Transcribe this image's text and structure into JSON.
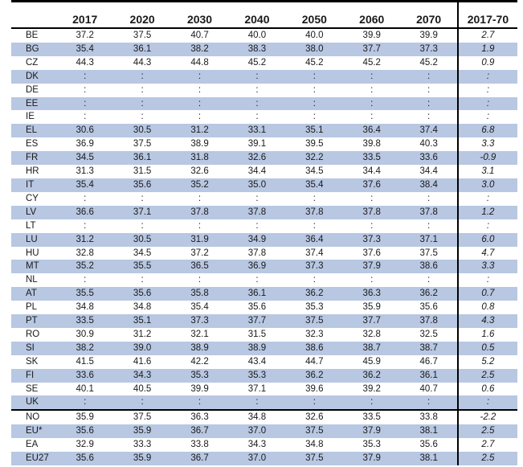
{
  "table": {
    "columns": [
      "",
      "2017",
      "2020",
      "2030",
      "2040",
      "2050",
      "2060",
      "2070",
      "2017-70"
    ],
    "rows": [
      {
        "c": "BE",
        "v": [
          "37.2",
          "37.5",
          "40.7",
          "40.0",
          "40.0",
          "39.9",
          "39.9",
          "2.7"
        ],
        "shade": false
      },
      {
        "c": "BG",
        "v": [
          "35.4",
          "36.1",
          "38.2",
          "38.3",
          "38.0",
          "37.7",
          "37.3",
          "1.9"
        ],
        "shade": true
      },
      {
        "c": "CZ",
        "v": [
          "44.3",
          "44.3",
          "44.8",
          "45.2",
          "45.2",
          "45.2",
          "45.2",
          "0.9"
        ],
        "shade": false
      },
      {
        "c": "DK",
        "v": [
          ":",
          ":",
          ":",
          ":",
          ":",
          ":",
          ":",
          ":"
        ],
        "shade": true
      },
      {
        "c": "DE",
        "v": [
          ":",
          ":",
          ":",
          ":",
          ":",
          ":",
          ":",
          ":"
        ],
        "shade": false
      },
      {
        "c": "EE",
        "v": [
          ":",
          ":",
          ":",
          ":",
          ":",
          ":",
          ":",
          ":"
        ],
        "shade": true
      },
      {
        "c": "IE",
        "v": [
          ":",
          ":",
          ":",
          ":",
          ":",
          ":",
          ":",
          ":"
        ],
        "shade": false
      },
      {
        "c": "EL",
        "v": [
          "30.6",
          "30.5",
          "31.2",
          "33.1",
          "35.1",
          "36.4",
          "37.4",
          "6.8"
        ],
        "shade": true
      },
      {
        "c": "ES",
        "v": [
          "36.9",
          "37.5",
          "38.9",
          "39.1",
          "39.5",
          "39.8",
          "40.3",
          "3.3"
        ],
        "shade": false
      },
      {
        "c": "FR",
        "v": [
          "34.5",
          "36.1",
          "31.8",
          "32.6",
          "32.2",
          "33.5",
          "33.6",
          "-0.9"
        ],
        "shade": true
      },
      {
        "c": "HR",
        "v": [
          "31.3",
          "31.5",
          "32.6",
          "34.4",
          "34.5",
          "34.4",
          "34.4",
          "3.1"
        ],
        "shade": false
      },
      {
        "c": "IT",
        "v": [
          "35.4",
          "35.6",
          "35.2",
          "35.0",
          "35.4",
          "37.6",
          "38.4",
          "3.0"
        ],
        "shade": true
      },
      {
        "c": "CY",
        "v": [
          ":",
          ":",
          ":",
          ":",
          ":",
          ":",
          ":",
          ":"
        ],
        "shade": false
      },
      {
        "c": "LV",
        "v": [
          "36.6",
          "37.1",
          "37.8",
          "37.8",
          "37.8",
          "37.8",
          "37.8",
          "1.2"
        ],
        "shade": true
      },
      {
        "c": "LT",
        "v": [
          ":",
          ":",
          ":",
          ":",
          ":",
          ":",
          ":",
          ":"
        ],
        "shade": false
      },
      {
        "c": "LU",
        "v": [
          "31.2",
          "30.5",
          "31.9",
          "34.9",
          "36.4",
          "37.3",
          "37.1",
          "6.0"
        ],
        "shade": true
      },
      {
        "c": "HU",
        "v": [
          "32.8",
          "34.5",
          "37.2",
          "37.8",
          "37.4",
          "37.6",
          "37.5",
          "4.7"
        ],
        "shade": false
      },
      {
        "c": "MT",
        "v": [
          "35.2",
          "35.5",
          "36.5",
          "36.9",
          "37.3",
          "37.9",
          "38.6",
          "3.3"
        ],
        "shade": true
      },
      {
        "c": "NL",
        "v": [
          ":",
          ":",
          ":",
          ":",
          ":",
          ":",
          ":",
          ":"
        ],
        "shade": false
      },
      {
        "c": "AT",
        "v": [
          "35.5",
          "35.6",
          "35.8",
          "36.1",
          "36.2",
          "36.3",
          "36.2",
          "0.7"
        ],
        "shade": true
      },
      {
        "c": "PL",
        "v": [
          "34.8",
          "34.8",
          "35.4",
          "35.6",
          "35.3",
          "35.9",
          "35.6",
          "0.8"
        ],
        "shade": false
      },
      {
        "c": "PT",
        "v": [
          "33.5",
          "35.1",
          "37.3",
          "37.7",
          "37.5",
          "37.7",
          "37.8",
          "4.3"
        ],
        "shade": true
      },
      {
        "c": "RO",
        "v": [
          "30.9",
          "31.2",
          "32.1",
          "31.5",
          "32.3",
          "32.8",
          "32.5",
          "1.6"
        ],
        "shade": false
      },
      {
        "c": "SI",
        "v": [
          "38.2",
          "39.0",
          "38.9",
          "38.9",
          "38.6",
          "38.7",
          "38.7",
          "0.5"
        ],
        "shade": true
      },
      {
        "c": "SK",
        "v": [
          "41.5",
          "41.6",
          "42.2",
          "43.4",
          "44.7",
          "45.9",
          "46.7",
          "5.2"
        ],
        "shade": false
      },
      {
        "c": "FI",
        "v": [
          "33.6",
          "34.3",
          "35.3",
          "35.3",
          "36.2",
          "36.2",
          "36.1",
          "2.5"
        ],
        "shade": true
      },
      {
        "c": "SE",
        "v": [
          "40.1",
          "40.5",
          "39.9",
          "37.1",
          "39.6",
          "39.2",
          "40.7",
          "0.6"
        ],
        "shade": false
      },
      {
        "c": "UK",
        "v": [
          ":",
          ":",
          ":",
          ":",
          ":",
          ":",
          ":",
          ":"
        ],
        "shade": true
      },
      {
        "c": "NO",
        "v": [
          "35.9",
          "37.5",
          "36.3",
          "34.8",
          "32.6",
          "33.5",
          "33.8",
          "-2.2"
        ],
        "shade": false,
        "groupstart": true
      },
      {
        "c": "EU*",
        "v": [
          "35.6",
          "35.9",
          "36.7",
          "37.0",
          "37.5",
          "37.9",
          "38.1",
          "2.5"
        ],
        "shade": true
      },
      {
        "c": "EA",
        "v": [
          "32.9",
          "33.3",
          "33.8",
          "34.3",
          "34.8",
          "35.3",
          "35.6",
          "2.7"
        ],
        "shade": false
      },
      {
        "c": "EU27",
        "v": [
          "35.6",
          "35.9",
          "36.7",
          "37.0",
          "37.5",
          "37.9",
          "38.1",
          "2.5"
        ],
        "shade": true
      }
    ]
  }
}
